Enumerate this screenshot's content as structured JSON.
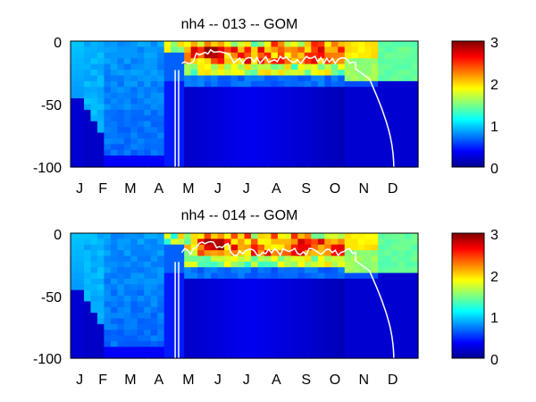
{
  "figure": {
    "background": "#ffffff"
  },
  "chart_data": [
    {
      "type": "heatmap",
      "title": "nh4 -- 013 -- GOM",
      "xlabel": "",
      "ylabel": "",
      "x_tick_labels": [
        "J",
        "F",
        "M",
        "A",
        "M",
        "J",
        "J",
        "A",
        "S",
        "O",
        "N",
        "D"
      ],
      "x_months": [
        1,
        2,
        3,
        4,
        5,
        6,
        7,
        8,
        9,
        10,
        11,
        12
      ],
      "y_ticks": [
        0,
        -50,
        -100
      ],
      "ylim": [
        -100,
        0
      ],
      "colorbar": {
        "ticks": [
          0,
          1,
          2,
          3
        ],
        "range": [
          0,
          3
        ],
        "colormap": "jet"
      },
      "overlay_line_color": "#ffffff",
      "variant": 0
    },
    {
      "type": "heatmap",
      "title": "nh4 -- 014 -- GOM",
      "xlabel": "",
      "ylabel": "",
      "x_tick_labels": [
        "J",
        "F",
        "M",
        "A",
        "M",
        "J",
        "J",
        "A",
        "S",
        "O",
        "N",
        "D"
      ],
      "x_months": [
        1,
        2,
        3,
        4,
        5,
        6,
        7,
        8,
        9,
        10,
        11,
        12
      ],
      "y_ticks": [
        0,
        -50,
        -100
      ],
      "ylim": [
        -100,
        0
      ],
      "colorbar": {
        "ticks": [
          0,
          1,
          2,
          3
        ],
        "range": [
          0,
          3
        ],
        "colormap": "jet"
      },
      "overlay_line_color": "#ffffff",
      "variant": 1
    }
  ]
}
